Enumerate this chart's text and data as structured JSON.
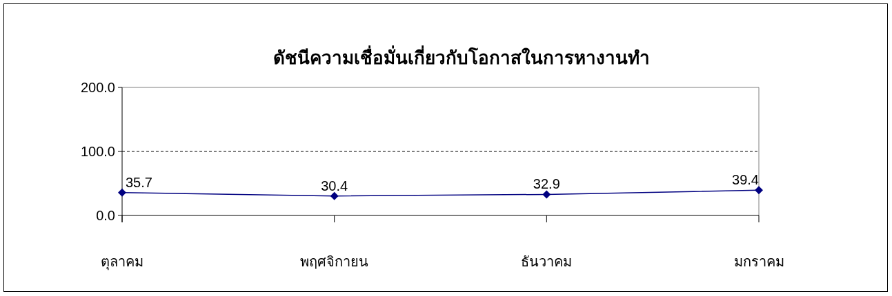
{
  "chart_data": {
    "type": "line",
    "title": "ดัชนีความเชื่อมั่นเกี่ยวกับโอกาสในการหางานทำ",
    "categories": [
      "ตุลาคม",
      "พฤศจิกายน",
      "ธันวาคม",
      "มกราคม"
    ],
    "series": [
      {
        "color": "#000080",
        "values": [
          35.7,
          30.4,
          32.9,
          39.4
        ]
      }
    ],
    "ylim": [
      0,
      200
    ],
    "yticks": [
      {
        "value": 0,
        "label": "0.0"
      },
      {
        "value": 100,
        "label": "100.0"
      },
      {
        "value": 200,
        "label": "200.0"
      }
    ],
    "grid": "y",
    "marker": "diamond",
    "line_style": "solid",
    "data_labels": true
  }
}
